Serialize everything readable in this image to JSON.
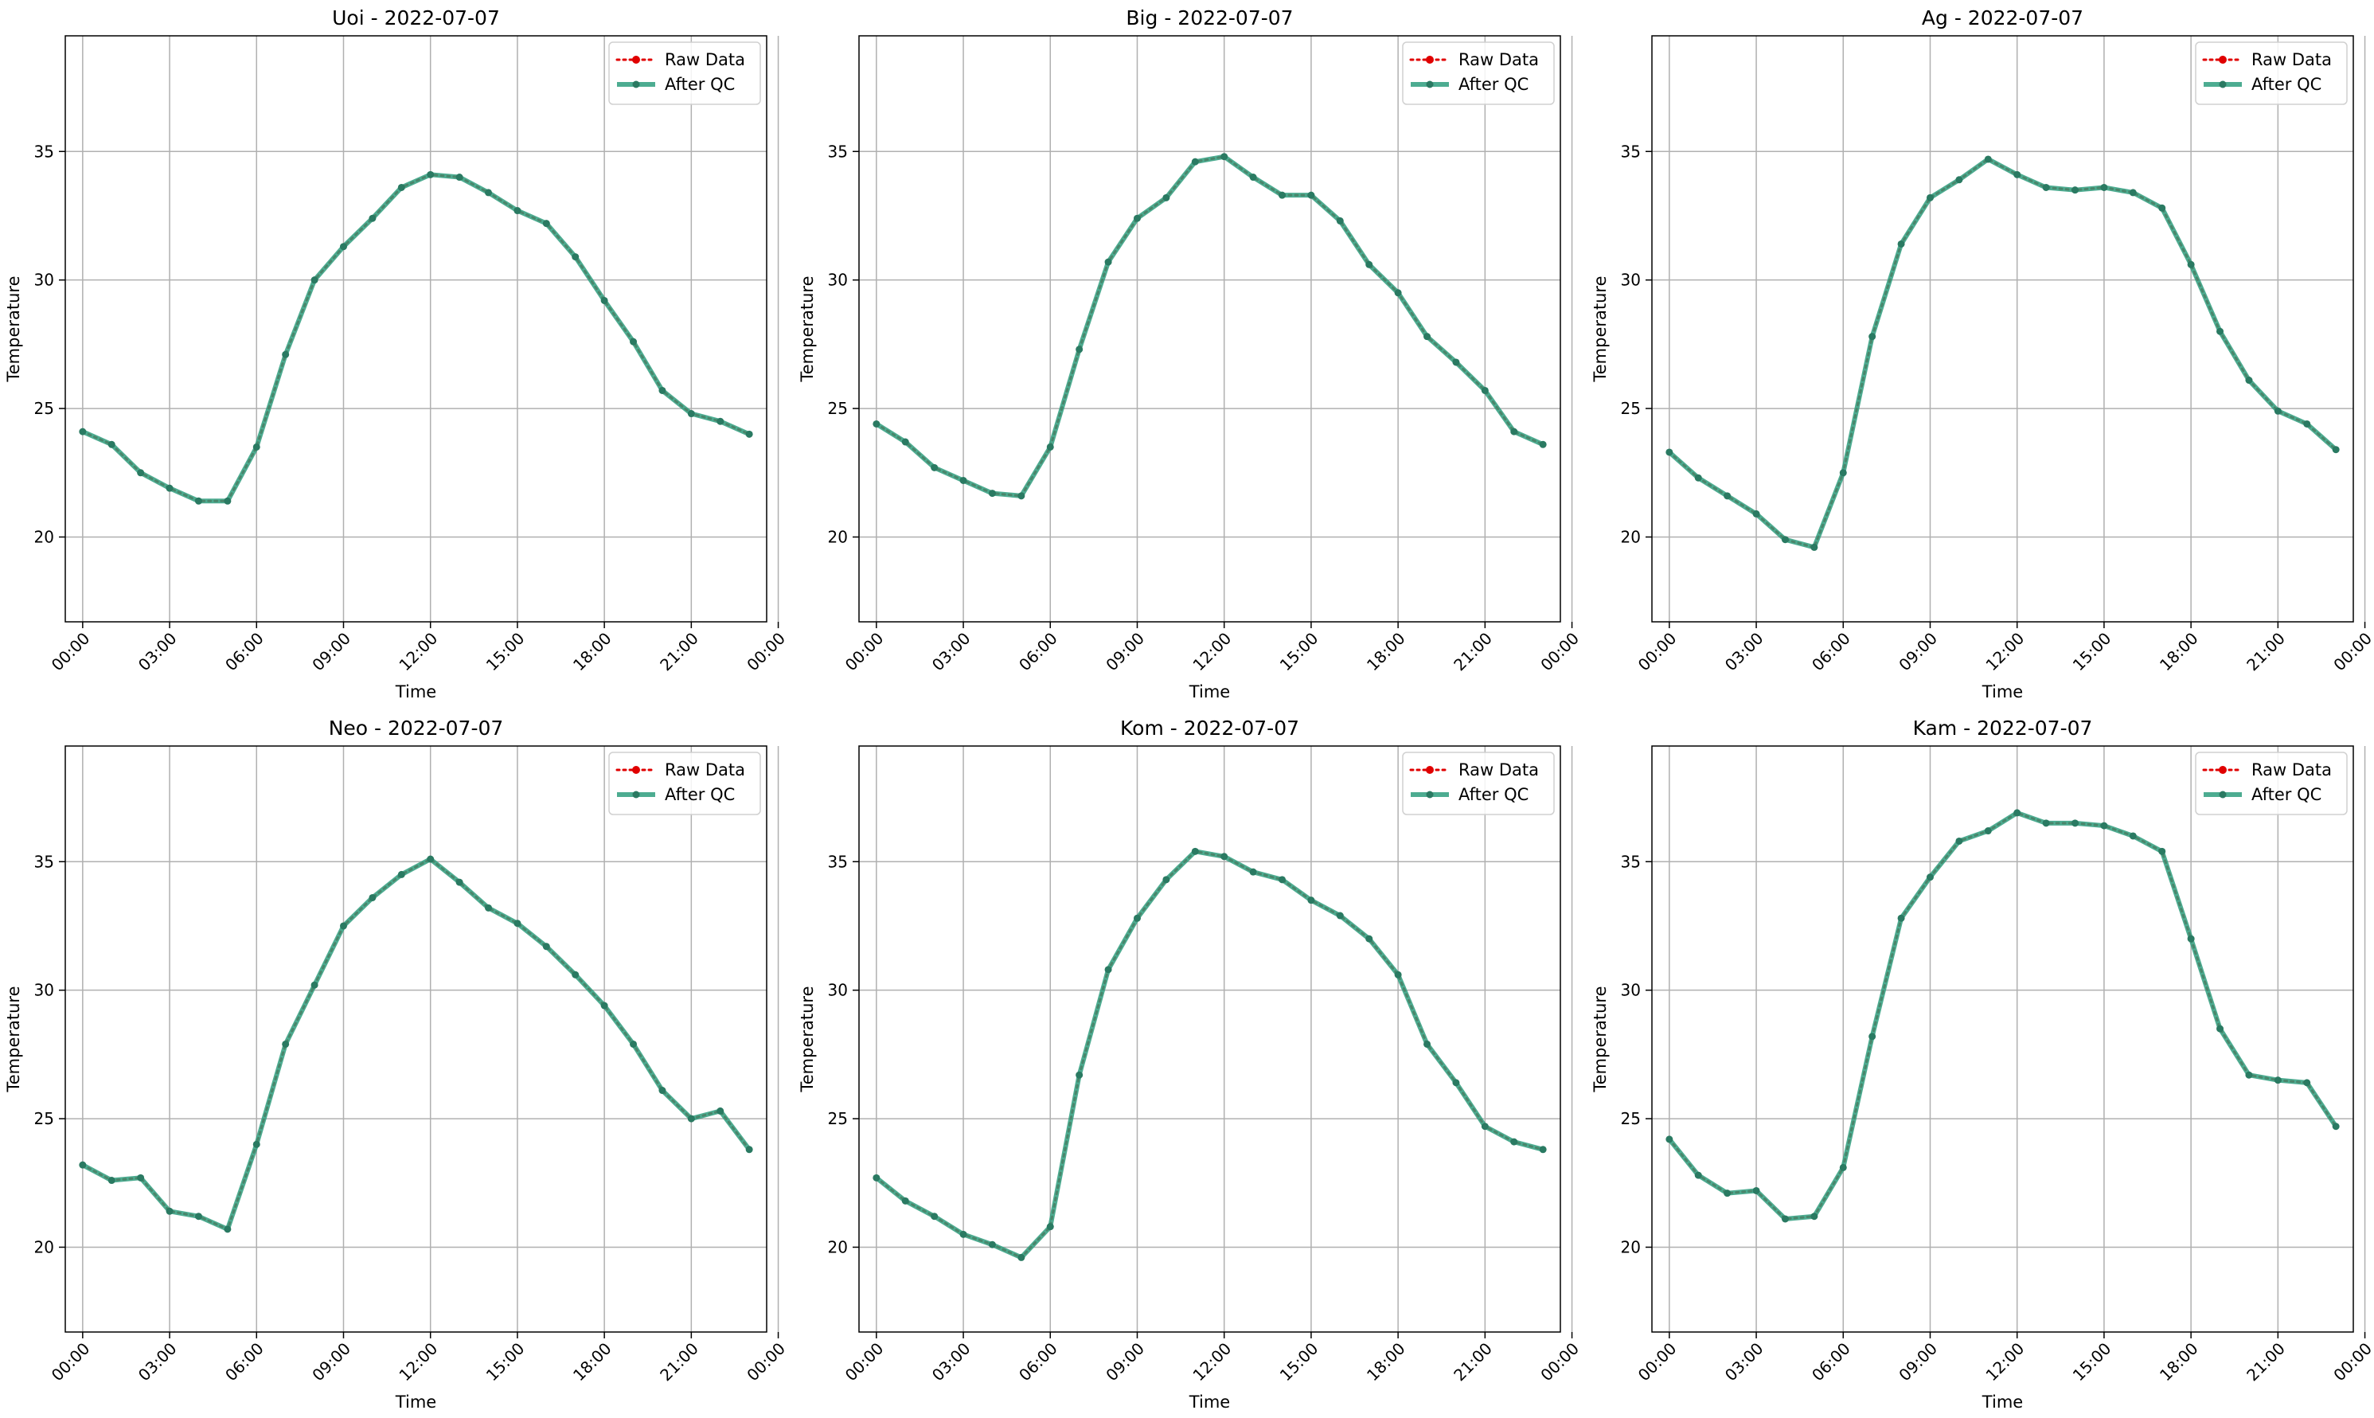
{
  "chart_data": [
    {
      "type": "line",
      "title": "Uoi - 2022-07-07",
      "xlabel": "Time",
      "ylabel": "Temperature",
      "x_ticks": [
        "00:00",
        "03:00",
        "06:00",
        "09:00",
        "12:00",
        "15:00",
        "18:00",
        "21:00",
        "00:00"
      ],
      "y_ticks": [
        20,
        25,
        30,
        35
      ],
      "xlim": [
        -0.6,
        23.6
      ],
      "ylim": [
        16.7,
        39.5
      ],
      "grid": true,
      "legend_position": "top-right",
      "x": [
        0,
        1,
        2,
        3,
        4,
        5,
        6,
        7,
        8,
        9,
        10,
        11,
        12,
        13,
        14,
        15,
        16,
        17,
        18,
        19,
        20,
        21,
        22,
        23
      ],
      "series": [
        {
          "name": "Raw Data",
          "color": "#e00000",
          "style": "dotted",
          "marker": "dot",
          "values": [
            24.1,
            23.6,
            22.5,
            21.9,
            21.4,
            21.4,
            23.5,
            27.1,
            30.0,
            31.3,
            32.4,
            33.6,
            34.1,
            34.0,
            33.4,
            32.7,
            32.2,
            30.9,
            29.2,
            27.6,
            25.7,
            24.8,
            24.5,
            24.0
          ]
        },
        {
          "name": "After QC",
          "color": "#2e9e7e",
          "style": "solid",
          "marker": "dot",
          "values": [
            24.1,
            23.6,
            22.5,
            21.9,
            21.4,
            21.4,
            23.5,
            27.1,
            30.0,
            31.3,
            32.4,
            33.6,
            34.1,
            34.0,
            33.4,
            32.7,
            32.2,
            30.9,
            29.2,
            27.6,
            25.7,
            24.8,
            24.5,
            24.0
          ]
        }
      ]
    },
    {
      "type": "line",
      "title": "Big - 2022-07-07",
      "xlabel": "Time",
      "ylabel": "Temperature",
      "x_ticks": [
        "00:00",
        "03:00",
        "06:00",
        "09:00",
        "12:00",
        "15:00",
        "18:00",
        "21:00",
        "00:00"
      ],
      "y_ticks": [
        20,
        25,
        30,
        35
      ],
      "xlim": [
        -0.6,
        23.6
      ],
      "ylim": [
        16.7,
        39.5
      ],
      "grid": true,
      "legend_position": "top-right",
      "x": [
        0,
        1,
        2,
        3,
        4,
        5,
        6,
        7,
        8,
        9,
        10,
        11,
        12,
        13,
        14,
        15,
        16,
        17,
        18,
        19,
        20,
        21,
        22,
        23
      ],
      "series": [
        {
          "name": "Raw Data",
          "color": "#e00000",
          "style": "dotted",
          "marker": "dot",
          "values": [
            24.4,
            23.7,
            22.7,
            22.2,
            21.7,
            21.6,
            23.5,
            27.3,
            30.7,
            32.4,
            33.2,
            34.6,
            34.8,
            34.0,
            33.3,
            33.3,
            32.3,
            30.6,
            29.5,
            27.8,
            26.8,
            25.7,
            24.1,
            23.6
          ]
        },
        {
          "name": "After QC",
          "color": "#2e9e7e",
          "style": "solid",
          "marker": "dot",
          "values": [
            24.4,
            23.7,
            22.7,
            22.2,
            21.7,
            21.6,
            23.5,
            27.3,
            30.7,
            32.4,
            33.2,
            34.6,
            34.8,
            34.0,
            33.3,
            33.3,
            32.3,
            30.6,
            29.5,
            27.8,
            26.8,
            25.7,
            24.1,
            23.6
          ]
        }
      ]
    },
    {
      "type": "line",
      "title": "Ag - 2022-07-07",
      "xlabel": "Time",
      "ylabel": "Temperature",
      "x_ticks": [
        "00:00",
        "03:00",
        "06:00",
        "09:00",
        "12:00",
        "15:00",
        "18:00",
        "21:00",
        "00:00"
      ],
      "y_ticks": [
        20,
        25,
        30,
        35
      ],
      "xlim": [
        -0.6,
        23.6
      ],
      "ylim": [
        16.7,
        39.5
      ],
      "grid": true,
      "legend_position": "top-right",
      "x": [
        0,
        1,
        2,
        3,
        4,
        5,
        6,
        7,
        8,
        9,
        10,
        11,
        12,
        13,
        14,
        15,
        16,
        17,
        18,
        19,
        20,
        21,
        22,
        23
      ],
      "series": [
        {
          "name": "Raw Data",
          "color": "#e00000",
          "style": "dotted",
          "marker": "dot",
          "values": [
            23.3,
            22.3,
            21.6,
            20.9,
            19.9,
            19.6,
            22.5,
            27.8,
            31.4,
            33.2,
            33.9,
            34.7,
            34.1,
            33.6,
            33.5,
            33.6,
            33.4,
            32.8,
            30.6,
            28.0,
            26.1,
            24.9,
            24.4,
            23.4
          ]
        },
        {
          "name": "After QC",
          "color": "#2e9e7e",
          "style": "solid",
          "marker": "dot",
          "values": [
            23.3,
            22.3,
            21.6,
            20.9,
            19.9,
            19.6,
            22.5,
            27.8,
            31.4,
            33.2,
            33.9,
            34.7,
            34.1,
            33.6,
            33.5,
            33.6,
            33.4,
            32.8,
            30.6,
            28.0,
            26.1,
            24.9,
            24.4,
            23.4
          ]
        }
      ]
    },
    {
      "type": "line",
      "title": "Neo - 2022-07-07",
      "xlabel": "Time",
      "ylabel": "Temperature",
      "x_ticks": [
        "00:00",
        "03:00",
        "06:00",
        "09:00",
        "12:00",
        "15:00",
        "18:00",
        "21:00",
        "00:00"
      ],
      "y_ticks": [
        20,
        25,
        30,
        35
      ],
      "xlim": [
        -0.6,
        23.6
      ],
      "ylim": [
        16.7,
        39.5
      ],
      "grid": true,
      "legend_position": "top-right",
      "x": [
        0,
        1,
        2,
        3,
        4,
        5,
        6,
        7,
        8,
        9,
        10,
        11,
        12,
        13,
        14,
        15,
        16,
        17,
        18,
        19,
        20,
        21,
        22,
        23
      ],
      "series": [
        {
          "name": "Raw Data",
          "color": "#e00000",
          "style": "dotted",
          "marker": "dot",
          "values": [
            23.2,
            22.6,
            22.7,
            21.4,
            21.2,
            20.7,
            24.0,
            27.9,
            30.2,
            32.5,
            33.6,
            34.5,
            35.1,
            34.2,
            33.2,
            32.6,
            31.7,
            30.6,
            29.4,
            27.9,
            26.1,
            25.0,
            25.3,
            23.8
          ]
        },
        {
          "name": "After QC",
          "color": "#2e9e7e",
          "style": "solid",
          "marker": "dot",
          "values": [
            23.2,
            22.6,
            22.7,
            21.4,
            21.2,
            20.7,
            24.0,
            27.9,
            30.2,
            32.5,
            33.6,
            34.5,
            35.1,
            34.2,
            33.2,
            32.6,
            31.7,
            30.6,
            29.4,
            27.9,
            26.1,
            25.0,
            25.3,
            23.8
          ]
        }
      ]
    },
    {
      "type": "line",
      "title": "Kom - 2022-07-07",
      "xlabel": "Time",
      "ylabel": "Temperature",
      "x_ticks": [
        "00:00",
        "03:00",
        "06:00",
        "09:00",
        "12:00",
        "15:00",
        "18:00",
        "21:00",
        "00:00"
      ],
      "y_ticks": [
        20,
        25,
        30,
        35
      ],
      "xlim": [
        -0.6,
        23.6
      ],
      "ylim": [
        16.7,
        39.5
      ],
      "grid": true,
      "legend_position": "top-right",
      "x": [
        0,
        1,
        2,
        3,
        4,
        5,
        6,
        7,
        8,
        9,
        10,
        11,
        12,
        13,
        14,
        15,
        16,
        17,
        18,
        19,
        20,
        21,
        22,
        23
      ],
      "series": [
        {
          "name": "Raw Data",
          "color": "#e00000",
          "style": "dotted",
          "marker": "dot",
          "values": [
            22.7,
            21.8,
            21.2,
            20.5,
            20.1,
            19.6,
            20.8,
            26.7,
            30.8,
            32.8,
            34.3,
            35.4,
            35.2,
            34.6,
            34.3,
            33.5,
            32.9,
            32.0,
            30.6,
            27.9,
            26.4,
            24.7,
            24.1,
            23.8
          ]
        },
        {
          "name": "After QC",
          "color": "#2e9e7e",
          "style": "solid",
          "marker": "dot",
          "values": [
            22.7,
            21.8,
            21.2,
            20.5,
            20.1,
            19.6,
            20.8,
            26.7,
            30.8,
            32.8,
            34.3,
            35.4,
            35.2,
            34.6,
            34.3,
            33.5,
            32.9,
            32.0,
            30.6,
            27.9,
            26.4,
            24.7,
            24.1,
            23.8
          ]
        }
      ]
    },
    {
      "type": "line",
      "title": "Kam - 2022-07-07",
      "xlabel": "Time",
      "ylabel": "Temperature",
      "x_ticks": [
        "00:00",
        "03:00",
        "06:00",
        "09:00",
        "12:00",
        "15:00",
        "18:00",
        "21:00",
        "00:00"
      ],
      "y_ticks": [
        20,
        25,
        30,
        35
      ],
      "xlim": [
        -0.6,
        23.6
      ],
      "ylim": [
        16.7,
        39.5
      ],
      "grid": true,
      "legend_position": "top-right",
      "x": [
        0,
        1,
        2,
        3,
        4,
        5,
        6,
        7,
        8,
        9,
        10,
        11,
        12,
        13,
        14,
        15,
        16,
        17,
        18,
        19,
        20,
        21,
        22,
        23
      ],
      "series": [
        {
          "name": "Raw Data",
          "color": "#e00000",
          "style": "dotted",
          "marker": "dot",
          "values": [
            24.2,
            22.8,
            22.1,
            22.2,
            21.1,
            21.2,
            23.1,
            28.2,
            32.8,
            34.4,
            35.8,
            36.2,
            36.9,
            36.5,
            36.5,
            36.4,
            36.0,
            35.4,
            32.0,
            28.5,
            26.7,
            26.5,
            26.4,
            24.7
          ]
        },
        {
          "name": "After QC",
          "color": "#2e9e7e",
          "style": "solid",
          "marker": "dot",
          "values": [
            24.2,
            22.8,
            22.1,
            22.2,
            21.1,
            21.2,
            23.1,
            28.2,
            32.8,
            34.4,
            35.8,
            36.2,
            36.9,
            36.5,
            36.5,
            36.4,
            36.0,
            35.4,
            32.0,
            28.5,
            26.7,
            26.5,
            26.4,
            24.7
          ]
        }
      ]
    }
  ]
}
